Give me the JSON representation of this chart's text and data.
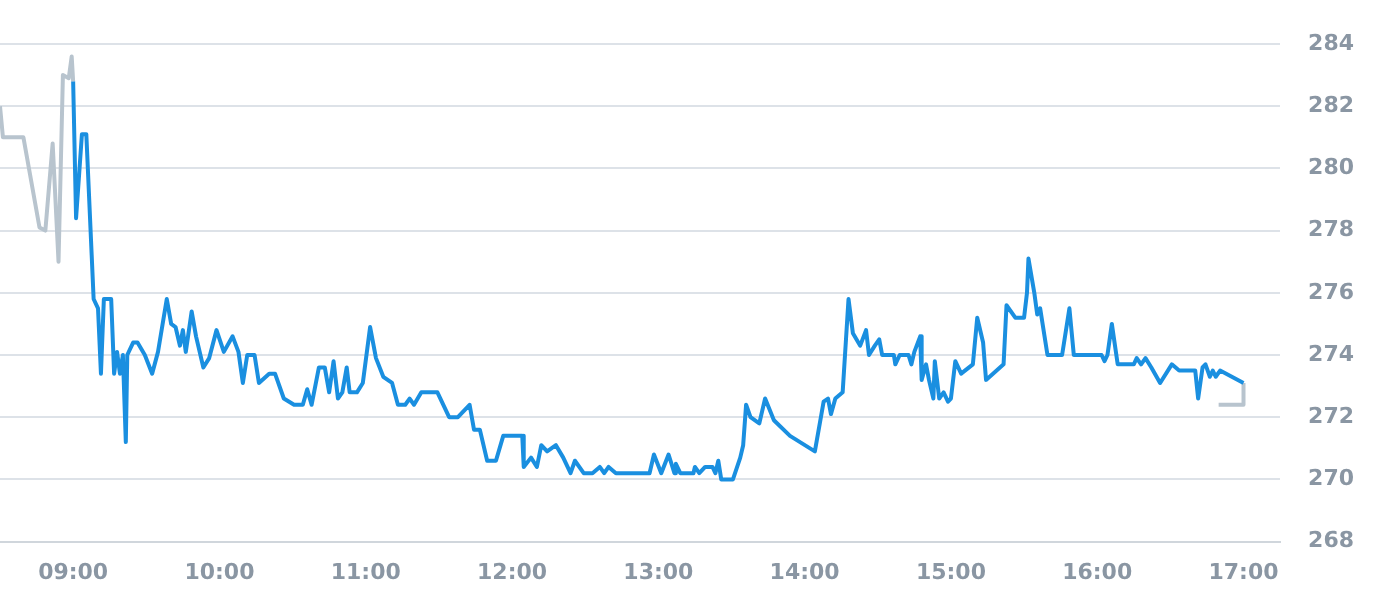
{
  "chart_data": {
    "type": "line",
    "grid": "y",
    "marker": "none",
    "line_style": "solid",
    "legend": false,
    "xlim": [
      8.5,
      17.25
    ],
    "ylim": [
      268,
      284
    ],
    "xticks": [
      {
        "value": 9,
        "label": "09:00"
      },
      {
        "value": 10,
        "label": "10:00"
      },
      {
        "value": 11,
        "label": "11:00"
      },
      {
        "value": 12,
        "label": "12:00"
      },
      {
        "value": 13,
        "label": "13:00"
      },
      {
        "value": 14,
        "label": "14:00"
      },
      {
        "value": 15,
        "label": "15:00"
      },
      {
        "value": 16,
        "label": "16:00"
      },
      {
        "value": 17,
        "label": "17:00"
      }
    ],
    "yticks": [
      268,
      270,
      272,
      274,
      276,
      278,
      280,
      282,
      284
    ],
    "series": [
      {
        "color": "#b8c4ce",
        "x": [
          8.5,
          8.52,
          8.66,
          8.77,
          8.81,
          8.86,
          8.9,
          8.93,
          8.97,
          8.99,
          9.0
        ],
        "values": [
          282,
          281,
          281,
          278.1,
          278,
          280.8,
          277,
          283,
          282.9,
          283.6,
          282.8
        ]
      },
      {
        "color": "#1a8fe0",
        "x": [
          9.0,
          9.02,
          9.06,
          9.09,
          9.14,
          9.17,
          9.19,
          9.21,
          9.26,
          9.28,
          9.3,
          9.32,
          9.34,
          9.36,
          9.37,
          9.41,
          9.44,
          9.49,
          9.54,
          9.58,
          9.64,
          9.67,
          9.7,
          9.73,
          9.75,
          9.77,
          9.81,
          9.84,
          9.89,
          9.93,
          9.98,
          10.03,
          10.09,
          10.13,
          10.16,
          10.19,
          10.24,
          10.27,
          10.34,
          10.38,
          10.44,
          10.51,
          10.57,
          10.6,
          10.63,
          10.68,
          10.72,
          10.75,
          10.78,
          10.81,
          10.84,
          10.87,
          10.89,
          10.94,
          10.98,
          11.03,
          11.07,
          11.12,
          11.18,
          11.22,
          11.27,
          11.3,
          11.33,
          11.38,
          11.49,
          11.57,
          11.63,
          11.71,
          11.74,
          11.78,
          11.83,
          11.89,
          11.94,
          12.07,
          12.08,
          12.13,
          12.17,
          12.2,
          12.24,
          12.3,
          12.35,
          12.4,
          12.43,
          12.49,
          12.55,
          12.6,
          12.63,
          12.66,
          12.71,
          12.94,
          12.97,
          13.02,
          13.07,
          13.11,
          13.12,
          13.15,
          13.24,
          13.25,
          13.28,
          13.32,
          13.37,
          13.39,
          13.41,
          13.43,
          13.51,
          13.56,
          13.58,
          13.6,
          13.63,
          13.69,
          13.73,
          13.79,
          13.9,
          14.07,
          14.13,
          14.16,
          14.18,
          14.21,
          14.26,
          14.3,
          14.33,
          14.38,
          14.42,
          14.44,
          14.48,
          14.51,
          14.53,
          14.61,
          14.62,
          14.65,
          14.71,
          14.73,
          14.75,
          14.79,
          14.8,
          14.83,
          14.85,
          14.88,
          14.89,
          14.92,
          14.95,
          14.98,
          15.0,
          15.03,
          15.07,
          15.15,
          15.18,
          15.22,
          15.24,
          15.36,
          15.38,
          15.44,
          15.5,
          15.52,
          15.53,
          15.57,
          15.59,
          15.61,
          15.66,
          15.76,
          15.81,
          15.84,
          15.9,
          16.03,
          16.05,
          16.07,
          16.1,
          16.14,
          16.25,
          16.27,
          16.3,
          16.33,
          16.37,
          16.43,
          16.51,
          16.56,
          16.67,
          16.69,
          16.72,
          16.74,
          16.77,
          16.79,
          16.81,
          16.84,
          17.0
        ],
        "values": [
          282.8,
          278.4,
          281.1,
          281.1,
          275.8,
          275.5,
          273.4,
          275.8,
          275.8,
          273.4,
          274.1,
          273.4,
          274,
          271.2,
          274,
          274.4,
          274.4,
          274,
          273.4,
          274.1,
          275.8,
          275,
          274.9,
          274.3,
          274.8,
          274.1,
          275.4,
          274.6,
          273.6,
          273.9,
          274.8,
          274.1,
          274.6,
          274.1,
          273.1,
          274,
          274,
          273.1,
          273.4,
          273.4,
          272.6,
          272.4,
          272.4,
          272.9,
          272.4,
          273.6,
          273.6,
          272.8,
          273.8,
          272.6,
          272.8,
          273.6,
          272.8,
          272.8,
          273.1,
          274.9,
          273.9,
          273.3,
          273.1,
          272.4,
          272.4,
          272.6,
          272.4,
          272.8,
          272.8,
          272,
          272,
          272.4,
          271.6,
          271.6,
          270.6,
          270.6,
          271.4,
          271.4,
          270.4,
          270.7,
          270.4,
          271.1,
          270.9,
          271.1,
          270.7,
          270.2,
          270.6,
          270.2,
          270.2,
          270.4,
          270.2,
          270.4,
          270.2,
          270.2,
          270.8,
          270.2,
          270.8,
          270.2,
          270.5,
          270.2,
          270.2,
          270.4,
          270.2,
          270.4,
          270.4,
          270.2,
          270.6,
          270,
          270,
          270.7,
          271.1,
          272.4,
          272,
          271.8,
          272.6,
          271.9,
          271.4,
          270.9,
          272.5,
          272.6,
          272.1,
          272.6,
          272.8,
          275.8,
          274.7,
          274.3,
          274.8,
          274,
          274.3,
          274.5,
          274,
          274,
          273.7,
          274,
          274,
          273.7,
          274.1,
          274.6,
          273.2,
          273.7,
          273.2,
          272.6,
          273.8,
          272.6,
          272.8,
          272.5,
          272.6,
          273.8,
          273.4,
          273.7,
          275.2,
          274.4,
          273.2,
          273.7,
          275.6,
          275.2,
          275.2,
          276,
          277.1,
          276,
          275.3,
          275.5,
          274,
          274,
          275.5,
          274,
          274,
          274,
          273.8,
          274,
          275,
          273.7,
          273.7,
          273.9,
          273.7,
          273.9,
          273.6,
          273.1,
          273.7,
          273.5,
          273.5,
          272.6,
          273.6,
          273.7,
          273.3,
          273.5,
          273.3,
          273.5,
          273.1
        ]
      },
      {
        "color": "#b8c4ce",
        "x": [
          16.83,
          17.0,
          17.0
        ],
        "values": [
          272.4,
          272.4,
          273.1
        ]
      }
    ]
  }
}
